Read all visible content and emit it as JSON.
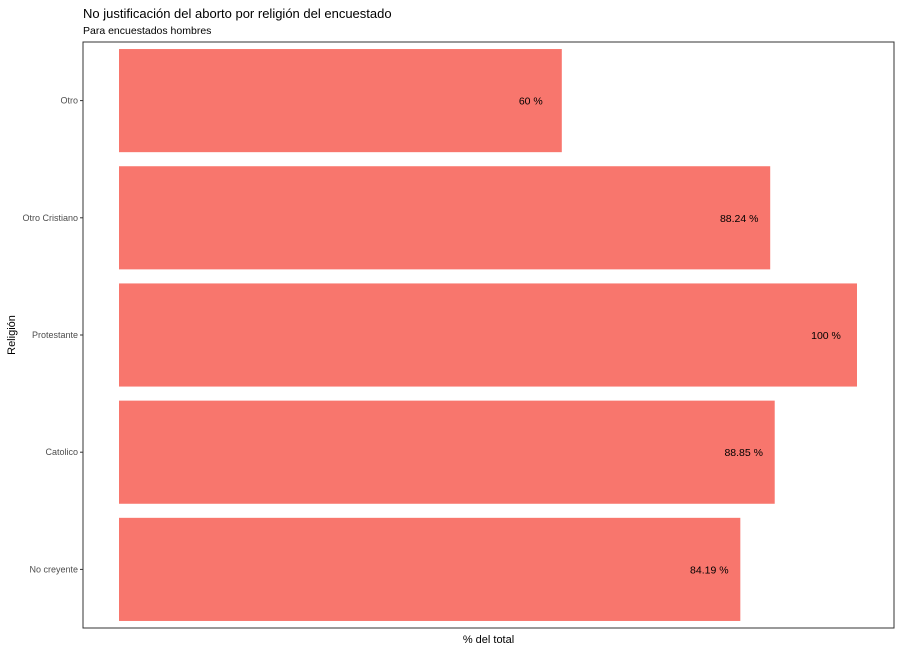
{
  "chart_data": {
    "type": "bar",
    "orientation": "horizontal",
    "title": "No justificación del aborto por religión del encuestado",
    "subtitle": "Para encuestados hombres",
    "xlabel": "% del total",
    "ylabel": "Religión",
    "categories": [
      "Otro",
      "Otro Cristiano",
      "Protestante",
      "Catolico",
      "No creyente"
    ],
    "values": [
      60,
      88.24,
      100,
      88.85,
      84.19
    ],
    "data_labels": [
      "60 %",
      "88.24 %",
      "100 %",
      "88.85 %",
      "84.19 %"
    ],
    "xlim": [
      0,
      100
    ],
    "x_ticks_shown": false,
    "grid": false,
    "legend": "none",
    "bar_color": "#F8766D"
  }
}
